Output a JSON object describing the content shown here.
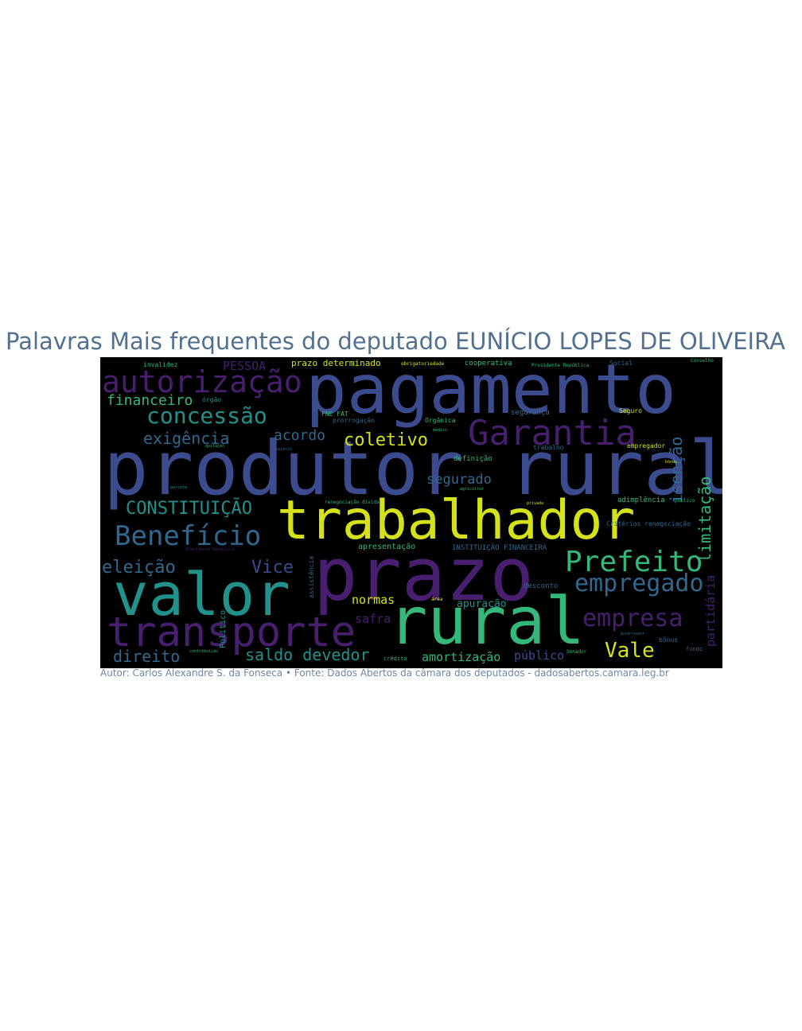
{
  "title": "Palavras Mais frequentes do deputado EUNÍCIO LOPES DE OLIVEIRA",
  "credit": "Autor: Carlos Alexandre S. da Fonseca • Fonte: Dados Abertos da câmara dos deputados - dadosabertos.camara.leg.br",
  "colors": {
    "purple": "#471f6e",
    "indigo": "#3c4b8e",
    "blue": "#31688e",
    "teal": "#21918c",
    "green": "#35b779",
    "yellow": "#d5e21a"
  },
  "words": {
    "pagamento": "pagamento",
    "produtor_rural": "produtor rural",
    "trabalhador": "trabalhador",
    "prazo": "prazo",
    "valor": "valor",
    "rural": "rural",
    "transporte": "transporte",
    "autorizacao": "autorização",
    "garantia": "Garantia",
    "concessao": "concessão",
    "beneficio": "Benefício",
    "prefeito": "Prefeito",
    "empregado": "empregado",
    "empresa": "empresa",
    "constituicao": "CONSTITUIÇÃO",
    "exigencia": "exigência",
    "acordo": "acordo",
    "coletivo": "coletivo",
    "financeiro": "financeiro",
    "pessoa": "PESSOA",
    "eleicao": "eleição",
    "vice": "Vice",
    "segurado": "segurado",
    "isencao": "isenção",
    "limitacao": "limitação",
    "partidaria": "partidária",
    "saldo_devedor": "saldo devedor",
    "direito": "direito",
    "vale": "Vale",
    "amortizacao": "amortização",
    "publico": "público",
    "normas": "normas",
    "safra": "safra",
    "apuracao": "apuração",
    "prazo_determinado": "prazo determinado",
    "invalidez": "invalidez",
    "cooperativa": "cooperativa",
    "social": "Social",
    "seguranca": "segurança",
    "seguro": "Seguro",
    "trabalho": "trabalho",
    "empregador": "empregador",
    "organica": "Orgânica",
    "prorrogacao": "prorrogação",
    "fne_fat": "FNE FAT",
    "orgao": "órgão",
    "definicao": "definição",
    "adimplencia": "adimplência",
    "instituicao_financeira": "INSTITUIÇÃO FINANCEIRA",
    "apresentacao": "apresentação",
    "desconto": "desconto",
    "criterios": "Critérios renegociação",
    "presidente_republica": "Presidente República",
    "renegociacao_divida": "renegociação dívida",
    "politico": "Político",
    "assistencia": "assistência",
    "area": "área",
    "credito": "crédito",
    "senador": "Senador",
    "bonus": "bônus",
    "fundo": "fundo",
    "governador": "Governador",
    "publico2": "público",
    "conselho": "Conselho",
    "agricultor": "agricultor",
    "privada": "privada",
    "parcela": "parcela",
    "salario": "salário",
    "quitacao": "quitação",
    "medico": "médico",
    "obrigatoriedade": "obrigatoriedade",
    "contribuicao": "contribuição"
  }
}
